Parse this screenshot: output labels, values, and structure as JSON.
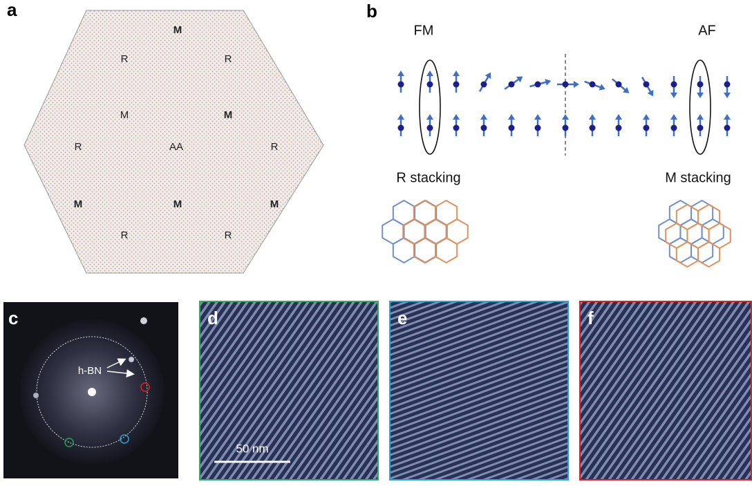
{
  "panel_a": {
    "label": "a",
    "regions": [
      "M",
      "R",
      "R",
      "M",
      "M",
      "R",
      "AA",
      "R",
      "M",
      "M",
      "M",
      "R",
      "R"
    ]
  },
  "panel_b": {
    "label": "b",
    "left_order": "FM",
    "right_order": "AF",
    "left_stacking": "R stacking",
    "right_stacking": "M stacking"
  },
  "panel_c": {
    "label": "c",
    "annotation": "h-BN"
  },
  "panel_d": {
    "label": "d",
    "scale_bar": "50 nm"
  },
  "panel_e": {
    "label": "e"
  },
  "panel_f": {
    "label": "f"
  }
}
